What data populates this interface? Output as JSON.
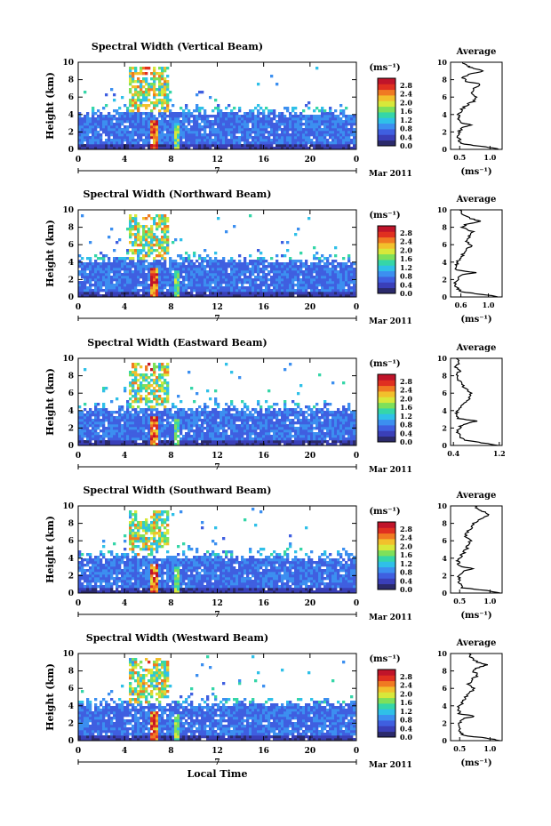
{
  "chart_data": [
    {
      "type": "heatmap",
      "title": "Spectral Width (Vertical Beam)",
      "ylabel": "Height (km)",
      "xticks": [
        "0",
        "4",
        "8",
        "12",
        "16",
        "20",
        "0"
      ],
      "yticks": [
        "0",
        "2",
        "4",
        "6",
        "8",
        "10"
      ],
      "xlim": [
        0,
        24
      ],
      "ylim": [
        0,
        10
      ],
      "date_tick": "7",
      "date_label": "Mar 2011",
      "colorbar": {
        "unit": "(ms⁻¹)",
        "ticks": [
          "2.8",
          "2.4",
          "2.0",
          "1.6",
          "1.2",
          "0.8",
          "0.4",
          "0.0"
        ],
        "range": [
          0,
          2.8
        ]
      },
      "average": {
        "title": "Average",
        "xlabel": "(ms⁻¹)",
        "xticks": [
          "0.5",
          "1.0"
        ],
        "xlim": [
          0.35,
          1.2
        ],
        "profile": [
          [
            0,
            1.15
          ],
          [
            0.3,
            0.95
          ],
          [
            0.6,
            0.55
          ],
          [
            1,
            0.5
          ],
          [
            1.5,
            0.48
          ],
          [
            2,
            0.5
          ],
          [
            2.5,
            0.52
          ],
          [
            2.8,
            0.7
          ],
          [
            3.1,
            0.5
          ],
          [
            3.6,
            0.47
          ],
          [
            4,
            0.48
          ],
          [
            4.5,
            0.52
          ],
          [
            5,
            0.6
          ],
          [
            5.5,
            0.72
          ],
          [
            6,
            0.78
          ],
          [
            6.5,
            0.7
          ],
          [
            7,
            0.72
          ],
          [
            7.5,
            0.85
          ],
          [
            7.8,
            0.6
          ],
          [
            8.2,
            0.55
          ],
          [
            8.6,
            0.65
          ],
          [
            9,
            0.9
          ],
          [
            9.3,
            0.75
          ],
          [
            9.6,
            0.6
          ],
          [
            10,
            0.55
          ]
        ]
      }
    },
    {
      "type": "heatmap",
      "title": "Spectral Width (Northward Beam)",
      "ylabel": "Height (km)",
      "xticks": [
        "0",
        "4",
        "8",
        "12",
        "16",
        "20",
        "0"
      ],
      "yticks": [
        "0",
        "2",
        "4",
        "6",
        "8",
        "10"
      ],
      "xlim": [
        0,
        24
      ],
      "ylim": [
        0,
        10
      ],
      "date_tick": "7",
      "date_label": "Mar 2011",
      "colorbar": {
        "unit": "(ms⁻¹)",
        "ticks": [
          "2.8",
          "2.4",
          "2.0",
          "1.6",
          "1.2",
          "0.8",
          "0.4",
          "0.0"
        ],
        "range": [
          0,
          2.8
        ]
      },
      "average": {
        "title": "Average",
        "xlabel": "(ms⁻¹)",
        "xticks": [
          "0.6",
          "1.0"
        ],
        "xlim": [
          0.45,
          1.2
        ],
        "profile": [
          [
            0,
            1.15
          ],
          [
            0.3,
            0.9
          ],
          [
            0.6,
            0.6
          ],
          [
            1,
            0.55
          ],
          [
            1.5,
            0.52
          ],
          [
            2,
            0.55
          ],
          [
            2.5,
            0.6
          ],
          [
            2.8,
            0.8
          ],
          [
            3.1,
            0.55
          ],
          [
            3.6,
            0.52
          ],
          [
            4,
            0.55
          ],
          [
            4.5,
            0.58
          ],
          [
            5,
            0.65
          ],
          [
            5.5,
            0.7
          ],
          [
            6,
            0.75
          ],
          [
            6.5,
            0.68
          ],
          [
            7,
            0.72
          ],
          [
            7.5,
            0.78
          ],
          [
            8,
            0.62
          ],
          [
            8.4,
            0.7
          ],
          [
            8.7,
            0.9
          ],
          [
            9,
            0.75
          ],
          [
            9.5,
            0.62
          ],
          [
            10,
            0.58
          ]
        ]
      }
    },
    {
      "type": "heatmap",
      "title": "Spectral Width (Eastward Beam)",
      "ylabel": "Height (km)",
      "xticks": [
        "0",
        "4",
        "8",
        "12",
        "16",
        "20",
        "0"
      ],
      "yticks": [
        "0",
        "2",
        "4",
        "6",
        "8",
        "10"
      ],
      "xlim": [
        0,
        24
      ],
      "ylim": [
        0,
        10
      ],
      "date_tick": "7",
      "date_label": "Mar 2011",
      "colorbar": {
        "unit": "(ms⁻¹)",
        "ticks": [
          "2.8",
          "2.4",
          "2.0",
          "1.6",
          "1.2",
          "0.8",
          "0.4",
          "0.0"
        ],
        "range": [
          0,
          2.8
        ]
      },
      "average": {
        "title": "Average",
        "xlabel": "",
        "xticks": [
          "0.4",
          "1.2"
        ],
        "xlim": [
          0.35,
          1.25
        ],
        "profile": [
          [
            0,
            1.2
          ],
          [
            0.3,
            0.9
          ],
          [
            0.6,
            0.6
          ],
          [
            1,
            0.5
          ],
          [
            1.5,
            0.48
          ],
          [
            2,
            0.5
          ],
          [
            2.4,
            0.55
          ],
          [
            2.8,
            0.8
          ],
          [
            3.1,
            0.5
          ],
          [
            3.6,
            0.45
          ],
          [
            4,
            0.47
          ],
          [
            4.5,
            0.55
          ],
          [
            5,
            0.62
          ],
          [
            5.5,
            0.68
          ],
          [
            6,
            0.72
          ],
          [
            6.5,
            0.6
          ],
          [
            7,
            0.55
          ],
          [
            7.5,
            0.5
          ],
          [
            8,
            0.45
          ],
          [
            8.5,
            0.5
          ],
          [
            9,
            0.45
          ],
          [
            9.5,
            0.5
          ],
          [
            10,
            0.45
          ]
        ]
      }
    },
    {
      "type": "heatmap",
      "title": "Spectral Width (Southward Beam)",
      "ylabel": "Height (km)",
      "xticks": [
        "0",
        "4",
        "8",
        "12",
        "16",
        "20",
        "0"
      ],
      "yticks": [
        "0",
        "2",
        "4",
        "6",
        "8",
        "10"
      ],
      "xlim": [
        0,
        24
      ],
      "ylim": [
        0,
        10
      ],
      "date_tick": "7",
      "date_label": "Mar 2011",
      "colorbar": {
        "unit": "(ms⁻¹)",
        "ticks": [
          "2.8",
          "2.4",
          "2.0",
          "1.6",
          "1.2",
          "0.8",
          "0.4",
          "0.0"
        ],
        "range": [
          0,
          2.8
        ]
      },
      "average": {
        "title": "Average",
        "xlabel": "(ms⁻¹)",
        "xticks": [
          "0.5",
          "1.0"
        ],
        "xlim": [
          0.35,
          1.2
        ],
        "profile": [
          [
            0,
            1.15
          ],
          [
            0.3,
            0.95
          ],
          [
            0.6,
            0.55
          ],
          [
            1,
            0.5
          ],
          [
            1.5,
            0.48
          ],
          [
            2,
            0.5
          ],
          [
            2.5,
            0.55
          ],
          [
            2.8,
            0.75
          ],
          [
            3.1,
            0.5
          ],
          [
            3.6,
            0.47
          ],
          [
            4,
            0.5
          ],
          [
            4.5,
            0.55
          ],
          [
            5,
            0.6
          ],
          [
            5.5,
            0.65
          ],
          [
            6,
            0.68
          ],
          [
            6.5,
            0.6
          ],
          [
            7,
            0.62
          ],
          [
            7.5,
            0.7
          ],
          [
            8,
            0.72
          ],
          [
            8.5,
            0.85
          ],
          [
            9,
            1.0
          ],
          [
            9.3,
            0.9
          ],
          [
            9.6,
            0.8
          ],
          [
            10,
            0.75
          ]
        ]
      }
    },
    {
      "type": "heatmap",
      "title": "Spectral Width (Westward Beam)",
      "ylabel": "Height (km)",
      "xlabel": "Local Time",
      "xticks": [
        "0",
        "4",
        "8",
        "12",
        "16",
        "20",
        "0"
      ],
      "yticks": [
        "0",
        "2",
        "4",
        "6",
        "8",
        "10"
      ],
      "xlim": [
        0,
        24
      ],
      "ylim": [
        0,
        10
      ],
      "date_tick": "7",
      "date_label": "Mar 2011",
      "colorbar": {
        "unit": "(ms⁻¹)",
        "ticks": [
          "2.8",
          "2.4",
          "2.0",
          "1.6",
          "1.2",
          "0.8",
          "0.4",
          "0.0"
        ],
        "range": [
          0,
          2.8
        ]
      },
      "average": {
        "title": "Average",
        "xlabel": "(ms⁻¹)",
        "xticks": [
          "0.5",
          "1.0"
        ],
        "xlim": [
          0.35,
          1.2
        ],
        "profile": [
          [
            0,
            1.15
          ],
          [
            0.3,
            0.95
          ],
          [
            0.6,
            0.55
          ],
          [
            1,
            0.5
          ],
          [
            1.5,
            0.48
          ],
          [
            2,
            0.5
          ],
          [
            2.5,
            0.55
          ],
          [
            2.8,
            0.75
          ],
          [
            3.1,
            0.5
          ],
          [
            3.6,
            0.47
          ],
          [
            4,
            0.5
          ],
          [
            4.5,
            0.55
          ],
          [
            5,
            0.6
          ],
          [
            5.5,
            0.68
          ],
          [
            6,
            0.72
          ],
          [
            6.5,
            0.65
          ],
          [
            7,
            0.7
          ],
          [
            7.5,
            0.8
          ],
          [
            8,
            0.72
          ],
          [
            8.4,
            0.8
          ],
          [
            8.7,
            0.95
          ],
          [
            9,
            0.8
          ],
          [
            9.5,
            0.7
          ],
          [
            10,
            0.65
          ]
        ]
      }
    }
  ],
  "colors": {
    "scale": [
      "#2b2a6b",
      "#3a3fb8",
      "#3f5fe0",
      "#3c8ff0",
      "#2fc0e8",
      "#35d6a8",
      "#7ee05a",
      "#d8e83a",
      "#f2c02c",
      "#f07a22",
      "#e03020",
      "#c0142a"
    ],
    "frame": "#000000"
  }
}
